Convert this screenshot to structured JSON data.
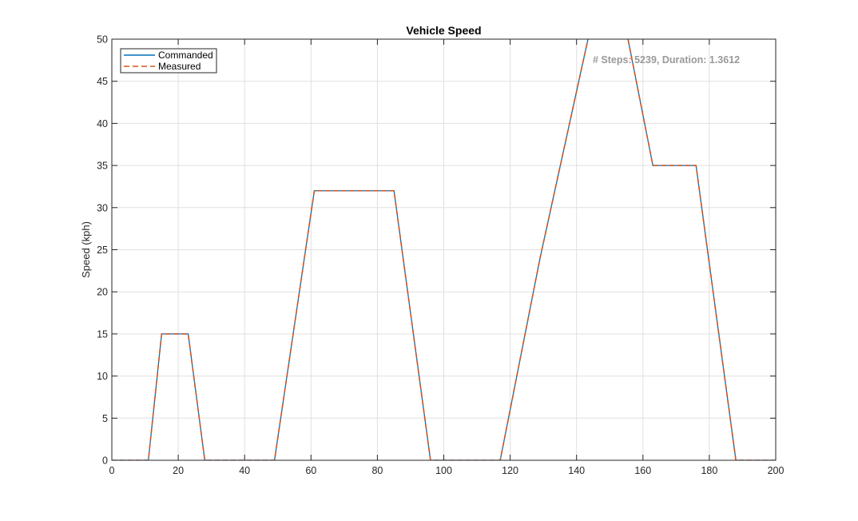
{
  "chart_data": {
    "type": "line",
    "title": "Vehicle Speed",
    "xlabel": "",
    "ylabel": "Speed (kph)",
    "xlim": [
      0,
      200
    ],
    "ylim": [
      0,
      50
    ],
    "xticks": [
      0,
      20,
      40,
      60,
      80,
      100,
      120,
      140,
      160,
      180,
      200
    ],
    "yticks": [
      0,
      5,
      10,
      15,
      20,
      25,
      30,
      35,
      40,
      45,
      50
    ],
    "grid": true,
    "legend_position": "top-left",
    "annotation": "# Steps: 5239, Duration: 1.3612",
    "series": [
      {
        "name": "Commanded",
        "color": "#0072BD",
        "style": "solid",
        "x": [
          0,
          11,
          15,
          23,
          28,
          49,
          61,
          85,
          96,
          117,
          129,
          144,
          155,
          163,
          176,
          188,
          200
        ],
        "y": [
          0,
          0,
          15,
          15,
          0,
          0,
          32,
          32,
          0,
          0,
          24,
          51,
          51,
          35,
          35,
          0,
          0
        ]
      },
      {
        "name": "Measured",
        "color": "#D95319",
        "style": "dashed",
        "x": [
          0,
          11,
          15,
          23,
          28,
          49,
          61,
          85,
          96,
          117,
          129,
          144,
          155,
          163,
          176,
          188,
          200
        ],
        "y": [
          0,
          0,
          15,
          15,
          0,
          0,
          32,
          32,
          0,
          0,
          24,
          51,
          51,
          35,
          35,
          0,
          0
        ]
      }
    ]
  }
}
